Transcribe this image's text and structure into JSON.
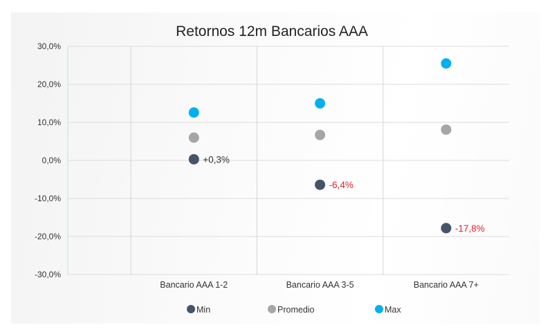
{
  "chart_data": {
    "type": "scatter",
    "title": "Retornos 12m Bancarios AAA",
    "categories": [
      "Bancario AAA 1-2",
      "Bancario AAA 3-5",
      "Bancario AAA 7+"
    ],
    "yticks": [
      "30,0%",
      "20,0%",
      "10,0%",
      "0,0%",
      "-10,0%",
      "-20,0%",
      "-30,0%"
    ],
    "ylim": [
      -30,
      30
    ],
    "grid": true,
    "legend_position": "bottom",
    "series": [
      {
        "name": "Min",
        "color": "#44546a",
        "values": [
          0.3,
          -6.4,
          -17.8
        ]
      },
      {
        "name": "Promedio",
        "color": "#a6a6a6",
        "values": [
          6.0,
          6.7,
          8.1
        ]
      },
      {
        "name": "Max",
        "color": "#00b0f0",
        "values": [
          12.6,
          15.0,
          25.5
        ]
      }
    ],
    "data_labels": [
      {
        "series": "Min",
        "index": 0,
        "text": "+0,3%",
        "color": "#333333"
      },
      {
        "series": "Min",
        "index": 1,
        "text": "-6,4%",
        "color": "#e8202a"
      },
      {
        "series": "Min",
        "index": 2,
        "text": "-17,8%",
        "color": "#e8202a"
      }
    ]
  }
}
